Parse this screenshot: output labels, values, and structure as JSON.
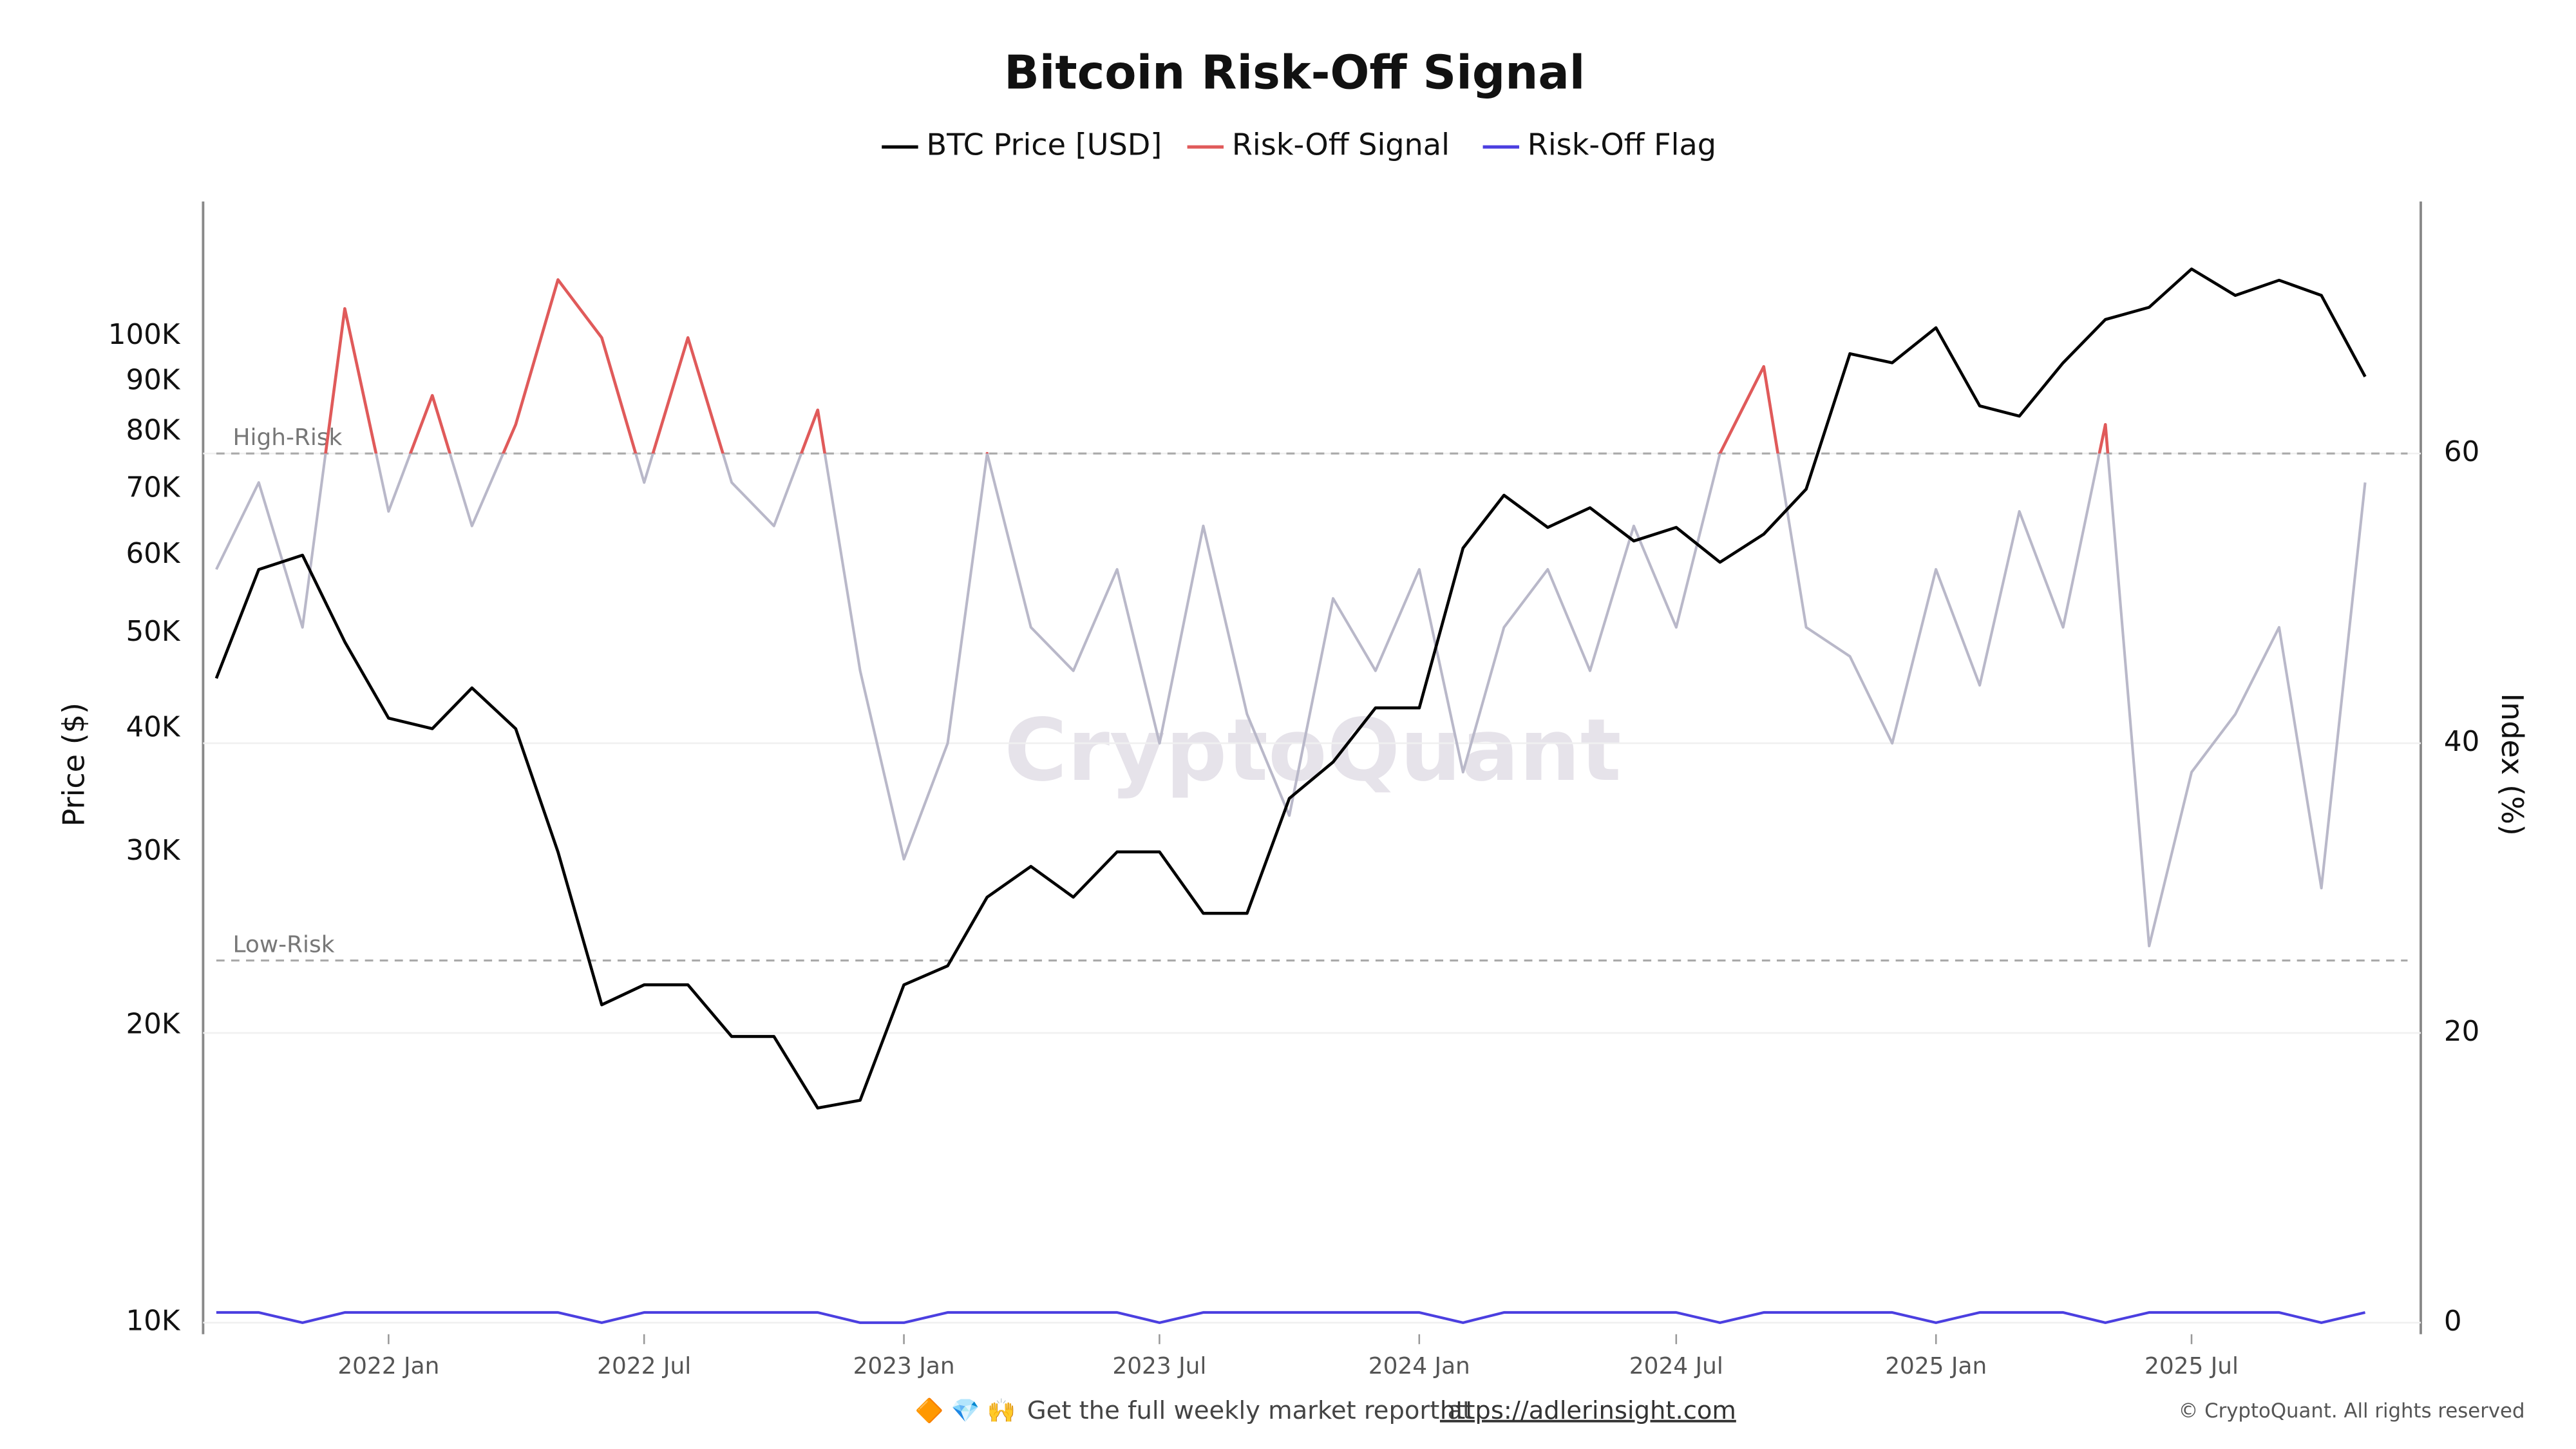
{
  "chart_data": {
    "type": "line",
    "title": "Bitcoin Risk-Off Signal",
    "y_label": "Price ($)",
    "y2_label": "Index (%)",
    "watermark": "CryptoQuant",
    "footer": {
      "emoji": "🔶 💎 🙌",
      "text": "Get the full weekly market report at",
      "link": "https://adlerinsight.com",
      "copyright": "© CryptoQuant. All rights reserved"
    },
    "x": [
      "2021-09",
      "2021-10",
      "2021-11",
      "2021-12",
      "2022-01",
      "2022-02",
      "2022-03",
      "2022-04",
      "2022-05",
      "2022-06",
      "2022-07",
      "2022-08",
      "2022-09",
      "2022-10",
      "2022-11",
      "2022-12",
      "2023-01",
      "2023-02",
      "2023-03",
      "2023-04",
      "2023-05",
      "2023-06",
      "2023-07",
      "2023-08",
      "2023-09",
      "2023-10",
      "2023-11",
      "2023-12",
      "2024-01",
      "2024-02",
      "2024-03",
      "2024-04",
      "2024-05",
      "2024-06",
      "2024-07",
      "2024-08",
      "2024-09",
      "2024-10",
      "2024-11",
      "2024-12",
      "2025-01",
      "2025-02",
      "2025-03",
      "2025-04",
      "2025-05",
      "2025-06",
      "2025-07",
      "2025-08",
      "2025-09",
      "2025-10",
      "2025-11"
    ],
    "xlim": [
      "2021-09",
      "2025-12"
    ],
    "xticks": [
      {
        "value": "2022-01",
        "label": "2022 Jan"
      },
      {
        "value": "2022-07",
        "label": "2022 Jul"
      },
      {
        "value": "2023-01",
        "label": "2023 Jan"
      },
      {
        "value": "2023-07",
        "label": "2023 Jul"
      },
      {
        "value": "2024-01",
        "label": "2024 Jan"
      },
      {
        "value": "2024-07",
        "label": "2024 Jul"
      },
      {
        "value": "2025-01",
        "label": "2025 Jan"
      },
      {
        "value": "2025-07",
        "label": "2025 Jul"
      }
    ],
    "y_scale": "log",
    "ylim": [
      9730,
      137000
    ],
    "yticks": [
      {
        "value": 10000,
        "label": "10K"
      },
      {
        "value": 20000,
        "label": "20K"
      },
      {
        "value": 30000,
        "label": "30K"
      },
      {
        "value": 40000,
        "label": "40K"
      },
      {
        "value": 50000,
        "label": "50K"
      },
      {
        "value": 60000,
        "label": "60K"
      },
      {
        "value": 70000,
        "label": "70K"
      },
      {
        "value": 80000,
        "label": "80K"
      },
      {
        "value": 90000,
        "label": "90K"
      },
      {
        "value": 100000,
        "label": "100K"
      }
    ],
    "y2lim": [
      -0.8,
      77.4
    ],
    "y2ticks": [
      0,
      20,
      40,
      60
    ],
    "grid": true,
    "annotations": [
      {
        "text": "High-Risk",
        "value": 60
      },
      {
        "text": "Low-Risk",
        "value": 25
      }
    ],
    "series": [
      {
        "name": "BTC Price [USD]",
        "color": "#000000",
        "values": [
          45000,
          58000,
          60000,
          49000,
          41000,
          40000,
          44000,
          40000,
          30000,
          21000,
          22000,
          22000,
          19500,
          19500,
          16500,
          16800,
          22000,
          23000,
          27000,
          29000,
          27000,
          30000,
          30000,
          26000,
          26000,
          34000,
          37000,
          42000,
          42000,
          61000,
          69000,
          64000,
          67000,
          62000,
          64000,
          59000,
          63000,
          70000,
          96000,
          94000,
          102000,
          85000,
          83000,
          94000,
          104000,
          107000,
          117000,
          110000,
          114000,
          110000,
          91000
        ]
      },
      {
        "name": "Risk-Off Signal",
        "color": "#e05a5a",
        "base_color": "#b9b8c9",
        "low_color": "#4a6fe0",
        "axis": "y2",
        "values": [
          52,
          58,
          48,
          70,
          56,
          64,
          55,
          62,
          72,
          68,
          58,
          68,
          58,
          55,
          63,
          45,
          32,
          40,
          60,
          48,
          45,
          52,
          40,
          55,
          42,
          35,
          50,
          45,
          52,
          38,
          48,
          52,
          45,
          55,
          48,
          60,
          66,
          48,
          46,
          40,
          52,
          44,
          56,
          48,
          62,
          26,
          38,
          42,
          48,
          30,
          58
        ]
      },
      {
        "name": "Risk-Off Flag",
        "color": "#4b3fe0",
        "axis": "y2",
        "values": [
          0.7,
          0.7,
          0,
          0.7,
          0.7,
          0.7,
          0.7,
          0.7,
          0.7,
          0,
          0.7,
          0.7,
          0.7,
          0.7,
          0.7,
          0,
          0,
          0.7,
          0.7,
          0.7,
          0.7,
          0.7,
          0,
          0.7,
          0.7,
          0.7,
          0.7,
          0.7,
          0.7,
          0,
          0.7,
          0.7,
          0.7,
          0.7,
          0.7,
          0,
          0.7,
          0.7,
          0.7,
          0.7,
          0,
          0.7,
          0.7,
          0.7,
          0,
          0.7,
          0.7,
          0.7,
          0.7,
          0,
          0.7
        ]
      }
    ]
  }
}
